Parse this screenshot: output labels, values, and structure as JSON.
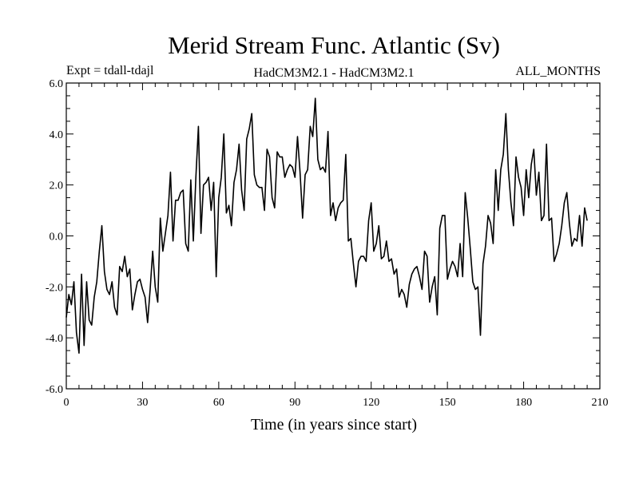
{
  "chart_data": {
    "type": "line",
    "title": "Merid Stream Func. Atlantic (Sv)",
    "subtitle_left": "Expt = tdall-tdajl",
    "subtitle_center": "HadCM3M2.1 - HadCM3M2.1",
    "subtitle_right": "ALL_MONTHS",
    "xlabel": "Time (in years since start)",
    "ylabel": "",
    "xlim": [
      0,
      210
    ],
    "ylim": [
      -6,
      6
    ],
    "x_ticks": [
      0,
      30,
      60,
      90,
      120,
      150,
      180,
      210
    ],
    "x_tick_labels": [
      "0",
      "30",
      "60",
      "90",
      "120",
      "150",
      "180",
      "210"
    ],
    "y_ticks": [
      -6,
      -4,
      -2,
      0,
      2,
      4,
      6
    ],
    "y_tick_labels": [
      "-6.0",
      "-4.0",
      "-2.0",
      "0.0",
      "2.0",
      "4.0",
      "6.0"
    ],
    "series": [
      {
        "name": "Merid Stream Func.",
        "color": "#000000",
        "values": [
          -3.2,
          -2.3,
          -2.7,
          -1.8,
          -3.8,
          -4.6,
          -1.5,
          -4.3,
          -1.8,
          -3.3,
          -3.5,
          -2.4,
          -1.8,
          -0.6,
          0.4,
          -1.4,
          -2.1,
          -2.3,
          -1.8,
          -2.8,
          -3.1,
          -1.2,
          -1.4,
          -0.8,
          -1.6,
          -1.3,
          -2.9,
          -2.3,
          -1.8,
          -1.7,
          -2.1,
          -2.4,
          -3.4,
          -2.1,
          -0.6,
          -2.0,
          -2.6,
          0.7,
          -0.6,
          0.1,
          0.8,
          2.5,
          -0.2,
          1.4,
          1.4,
          1.7,
          1.8,
          -0.3,
          -0.6,
          2.2,
          -0.2,
          2.3,
          4.3,
          0.1,
          2.0,
          2.1,
          2.3,
          1.0,
          2.1,
          -1.6,
          1.5,
          2.3,
          4.0,
          0.9,
          1.2,
          0.4,
          2.1,
          2.6,
          3.6,
          1.8,
          1.0,
          3.8,
          4.2,
          4.8,
          2.4,
          2.0,
          1.9,
          1.9,
          1.0,
          3.4,
          3.1,
          1.5,
          1.1,
          3.3,
          3.1,
          3.1,
          2.3,
          2.6,
          2.8,
          2.7,
          2.3,
          3.9,
          2.5,
          0.7,
          2.4,
          2.6,
          4.3,
          3.9,
          5.4,
          3.0,
          2.6,
          2.7,
          2.5,
          4.1,
          0.8,
          1.3,
          0.6,
          1.1,
          1.3,
          1.4,
          3.2,
          -0.2,
          -0.1,
          -1.1,
          -2.0,
          -1.0,
          -0.8,
          -0.8,
          -1.0,
          0.6,
          1.3,
          -0.6,
          -0.3,
          0.4,
          -0.9,
          -0.8,
          -0.2,
          -1.0,
          -0.9,
          -1.5,
          -1.3,
          -2.4,
          -2.1,
          -2.3,
          -2.8,
          -1.9,
          -1.5,
          -1.3,
          -1.2,
          -1.6,
          -2.1,
          -0.6,
          -0.8,
          -2.6,
          -2.0,
          -1.6,
          -3.1,
          0.3,
          0.8,
          0.8,
          -1.7,
          -1.3,
          -1.0,
          -1.2,
          -1.6,
          -0.3,
          -1.6,
          1.7,
          0.7,
          -0.5,
          -1.8,
          -2.1,
          -2.0,
          -3.9,
          -1.1,
          -0.4,
          0.8,
          0.5,
          -0.3,
          2.6,
          1.0,
          2.6,
          3.2,
          4.8,
          2.6,
          1.3,
          0.4,
          3.1,
          2.3,
          1.9,
          0.8,
          2.6,
          1.5,
          2.8,
          3.4,
          1.6,
          2.5,
          0.6,
          0.8,
          3.6,
          0.6,
          0.7,
          -1.0,
          -0.7,
          -0.3,
          0.4,
          1.3,
          1.7,
          0.5,
          -0.4,
          -0.1,
          -0.2,
          0.8,
          -0.4,
          1.1,
          0.6
        ]
      }
    ]
  }
}
